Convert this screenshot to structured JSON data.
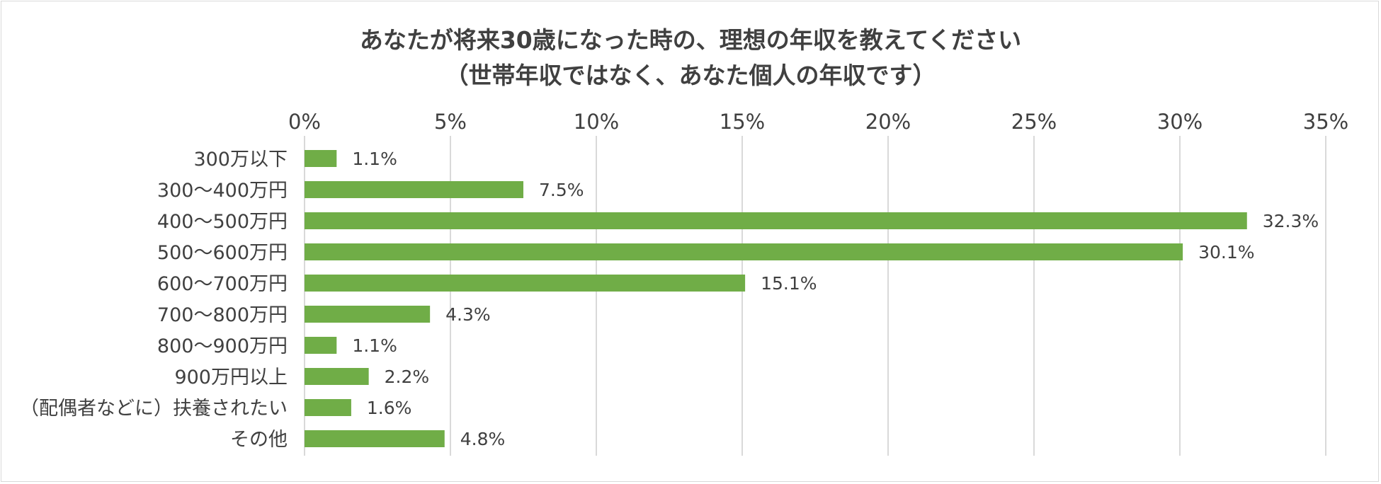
{
  "chart_data": {
    "type": "bar",
    "orientation": "horizontal",
    "title": "あなたが将来30歳になった時の、理想の年収を教えてください",
    "subtitle": "（世帯年収ではなく、あなた個人の年収です）",
    "categories": [
      "300万以下",
      "300〜400万円",
      "400〜500万円",
      "500〜600万円",
      "600〜700万円",
      "700〜800万円",
      "800〜900万円",
      "900万円以上",
      "（配偶者などに）扶養されたい",
      "その他"
    ],
    "values": [
      1.1,
      7.5,
      32.3,
      30.1,
      15.1,
      4.3,
      1.1,
      2.2,
      1.6,
      4.8
    ],
    "data_labels": [
      "1.1%",
      "7.5%",
      "32.3%",
      "30.1%",
      "15.1%",
      "4.3%",
      "1.1%",
      "2.2%",
      "1.6%",
      "4.8%"
    ],
    "xlim": [
      0,
      35
    ],
    "x_ticks": [
      "0%",
      "5%",
      "10%",
      "15%",
      "20%",
      "25%",
      "30%",
      "35%"
    ],
    "x_axis_position": "top",
    "grid": true,
    "bar_color": "#70ad47",
    "grid_color": "#d9d9d9",
    "xlabel": "",
    "ylabel": ""
  }
}
